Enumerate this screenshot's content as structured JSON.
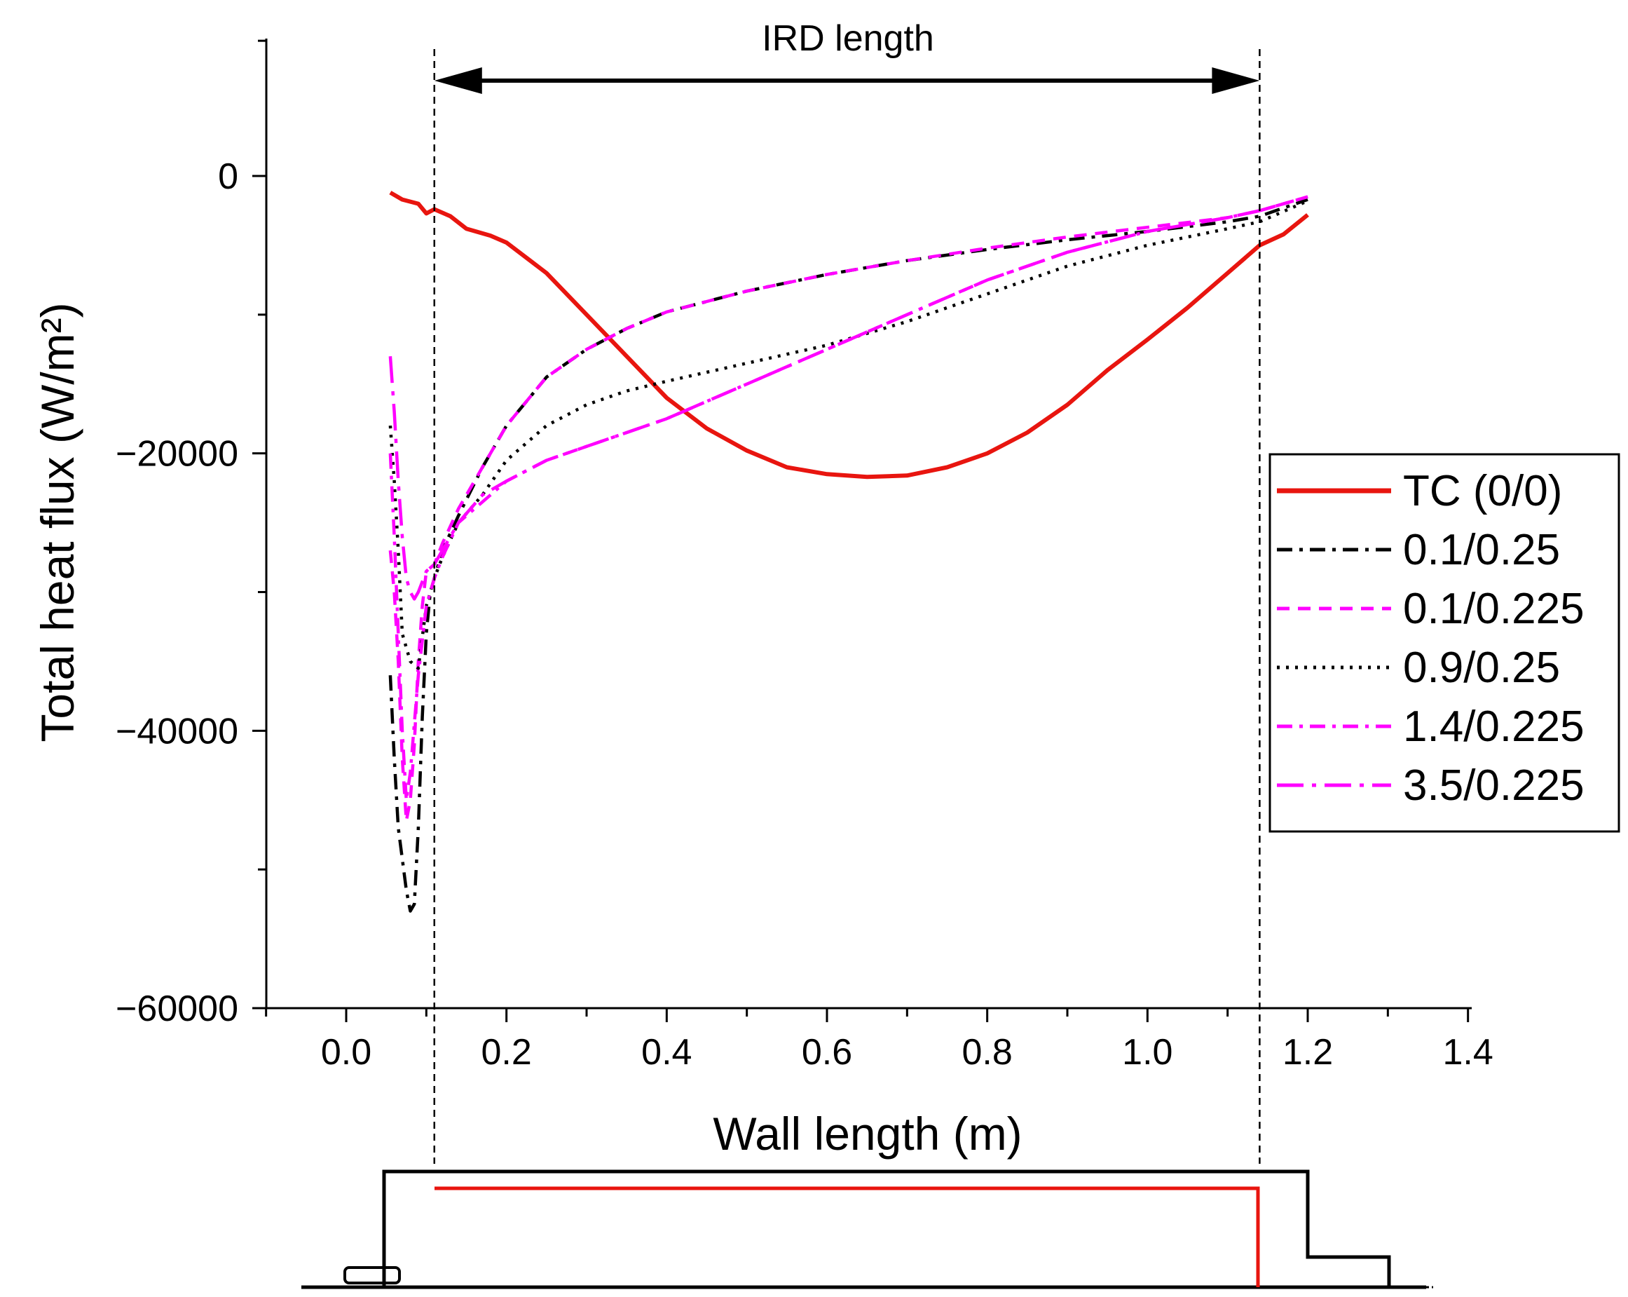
{
  "chart_data": {
    "type": "line",
    "title": "",
    "xlabel": "Wall length (m)",
    "ylabel": "Total heat flux (W/m²)",
    "xlim": [
      -0.1,
      1.4
    ],
    "ylim": [
      -60000,
      10000
    ],
    "xticks": [
      0.0,
      0.2,
      0.4,
      0.6,
      0.8,
      1.0,
      1.2,
      1.4
    ],
    "xtick_labels": [
      "0.0",
      "0.2",
      "0.4",
      "0.6",
      "0.8",
      "1.0",
      "1.2",
      "1.4"
    ],
    "yticks": [
      0,
      -20000,
      -40000,
      -60000
    ],
    "ytick_labels": [
      "0",
      "−20000",
      "−40000",
      "−60000"
    ],
    "legend_position": "right",
    "annotation": {
      "text": "IRD length",
      "x_start": 0.11,
      "x_end": 1.14
    },
    "series": [
      {
        "name": "TC (0/0)",
        "color": "#e8150f",
        "style": "solid",
        "x": [
          0.055,
          0.07,
          0.09,
          0.1,
          0.11,
          0.13,
          0.15,
          0.18,
          0.2,
          0.25,
          0.3,
          0.35,
          0.4,
          0.45,
          0.5,
          0.55,
          0.6,
          0.65,
          0.7,
          0.75,
          0.8,
          0.85,
          0.9,
          0.95,
          1.0,
          1.05,
          1.1,
          1.14,
          1.17,
          1.2
        ],
        "y": [
          -1200,
          -1700,
          -2000,
          -2700,
          -2400,
          -2900,
          -3800,
          -4300,
          -4800,
          -7000,
          -10000,
          -13000,
          -16000,
          -18200,
          -19800,
          -21000,
          -21500,
          -21700,
          -21600,
          -21000,
          -20000,
          -18500,
          -16500,
          -14000,
          -11800,
          -9500,
          -7000,
          -5000,
          -4200,
          -2800
        ]
      },
      {
        "name": "0.1/0.25",
        "color": "#000000",
        "style": "dashdot",
        "x": [
          0.055,
          0.06,
          0.065,
          0.075,
          0.08,
          0.085,
          0.09,
          0.095,
          0.1,
          0.105,
          0.11,
          0.12,
          0.14,
          0.17,
          0.2,
          0.25,
          0.3,
          0.35,
          0.4,
          0.5,
          0.6,
          0.7,
          0.8,
          0.9,
          1.0,
          1.1,
          1.14,
          1.2
        ],
        "y": [
          -36000,
          -42000,
          -47000,
          -51500,
          -53000,
          -52500,
          -47000,
          -39000,
          -33000,
          -30000,
          -29000,
          -27000,
          -24500,
          -21000,
          -18000,
          -14500,
          -12500,
          -11000,
          -9800,
          -8300,
          -7100,
          -6100,
          -5300,
          -4600,
          -4000,
          -3300,
          -2900,
          -1700
        ]
      },
      {
        "name": "0.1/0.225",
        "color": "#ff00ff",
        "style": "dashed",
        "x": [
          0.055,
          0.06,
          0.065,
          0.07,
          0.075,
          0.08,
          0.085,
          0.09,
          0.095,
          0.1,
          0.11,
          0.12,
          0.14,
          0.17,
          0.2,
          0.25,
          0.3,
          0.35,
          0.4,
          0.5,
          0.6,
          0.7,
          0.8,
          0.9,
          1.0,
          1.1,
          1.14,
          1.2
        ],
        "y": [
          -27000,
          -30000,
          -35000,
          -42000,
          -46500,
          -45000,
          -41000,
          -35000,
          -31000,
          -28500,
          -28000,
          -26500,
          -24000,
          -21000,
          -18000,
          -14500,
          -12500,
          -11000,
          -9800,
          -8300,
          -7100,
          -6100,
          -5200,
          -4400,
          -3700,
          -3000,
          -2500,
          -1500
        ]
      },
      {
        "name": "0.9/0.25",
        "color": "#000000",
        "style": "dotted",
        "x": [
          0.055,
          0.06,
          0.065,
          0.07,
          0.08,
          0.09,
          0.1,
          0.11,
          0.12,
          0.14,
          0.17,
          0.2,
          0.25,
          0.3,
          0.35,
          0.4,
          0.5,
          0.6,
          0.7,
          0.8,
          0.9,
          1.0,
          1.1,
          1.14,
          1.2
        ],
        "y": [
          -18000,
          -22000,
          -27000,
          -33000,
          -35000,
          -35500,
          -31000,
          -29000,
          -27500,
          -25000,
          -23000,
          -20500,
          -18000,
          -16500,
          -15500,
          -14800,
          -13500,
          -12200,
          -10500,
          -8500,
          -6500,
          -5000,
          -3800,
          -3300,
          -1800
        ]
      },
      {
        "name": "1.4/0.225",
        "color": "#ff00ff",
        "style": "dashdot",
        "x": [
          0.055,
          0.06,
          0.065,
          0.07,
          0.075,
          0.08,
          0.09,
          0.1,
          0.11,
          0.12,
          0.14,
          0.17,
          0.2,
          0.25,
          0.3,
          0.35,
          0.4,
          0.5,
          0.6,
          0.7,
          0.8,
          0.9,
          1.0,
          1.1,
          1.14,
          1.2
        ],
        "y": [
          -20000,
          -26000,
          -33000,
          -40000,
          -45000,
          -43000,
          -36000,
          -31000,
          -29000,
          -27500,
          -25000,
          -23500,
          -22000,
          -20500,
          -19500,
          -18500,
          -17500,
          -15000,
          -12500,
          -10000,
          -7500,
          -5500,
          -4000,
          -3000,
          -2500,
          -1500
        ]
      },
      {
        "name": "3.5/0.225",
        "color": "#ff00ff",
        "style": "longdashdot",
        "x": [
          0.055,
          0.06,
          0.065,
          0.07,
          0.075,
          0.08,
          0.085,
          0.09,
          0.1,
          0.11,
          0.12,
          0.14,
          0.17,
          0.2,
          0.25,
          0.3,
          0.35,
          0.4,
          0.5,
          0.6,
          0.7,
          0.8,
          0.9,
          1.0,
          1.1,
          1.14,
          1.2
        ],
        "y": [
          -13000,
          -17000,
          -22000,
          -26000,
          -29000,
          -30000,
          -30500,
          -30000,
          -28500,
          -28000,
          -27000,
          -25000,
          -23000,
          -22000,
          -20500,
          -19500,
          -18500,
          -17500,
          -15000,
          -12500,
          -10000,
          -7500,
          -5500,
          -4000,
          -3000,
          -2500,
          -1500
        ]
      }
    ]
  }
}
